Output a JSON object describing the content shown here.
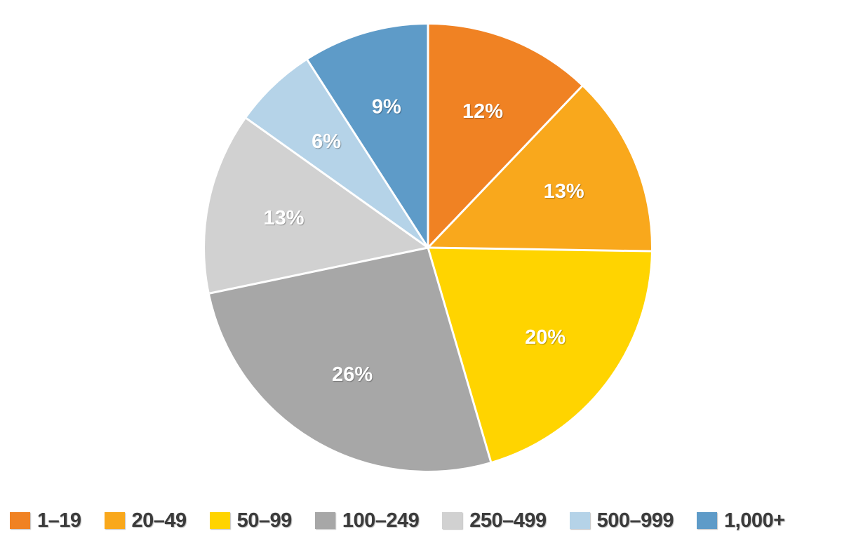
{
  "chart_data": {
    "type": "pie",
    "title": "",
    "categories": [
      "1–19",
      "20–49",
      "50–99",
      "100–249",
      "250–499",
      "500–999",
      "1,000+"
    ],
    "values": [
      12,
      13,
      20,
      26,
      13,
      6,
      9
    ],
    "slice_labels": [
      "12%",
      "13%",
      "20%",
      "26%",
      "13%",
      "6%",
      "9%"
    ],
    "colors": [
      "#F08223",
      "#F9A81C",
      "#FFD400",
      "#A7A7A7",
      "#D1D1D1",
      "#B5D3E8",
      "#5E9BC8"
    ],
    "slice_label_color": "#FFFFFF",
    "slice_border_color": "#FFFFFF",
    "legend_position": "bottom",
    "legend_text_color": "#3B3B3B",
    "start_angle_deg": 0,
    "direction": "clockwise",
    "background_color": "#FFFFFF"
  }
}
